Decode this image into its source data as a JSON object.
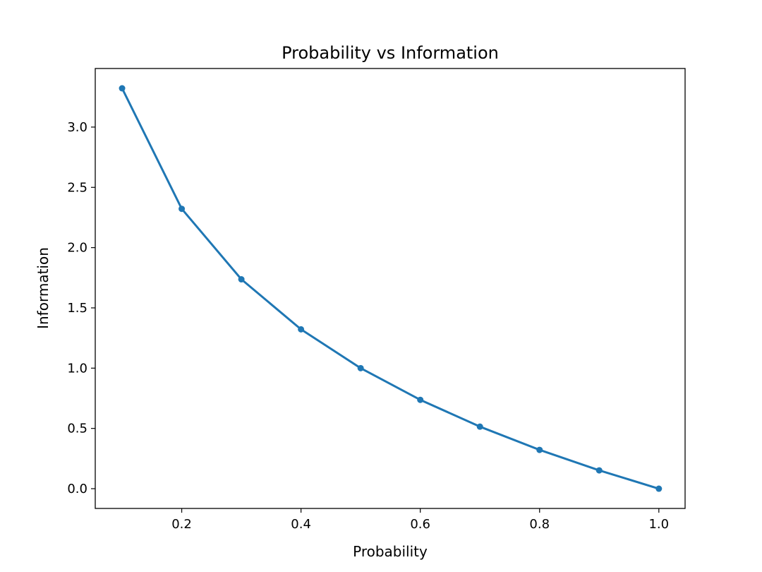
{
  "chart_data": {
    "type": "line",
    "title": "Probability vs Information",
    "xlabel": "Probability",
    "ylabel": "Information",
    "x": [
      0.1,
      0.2,
      0.3,
      0.4,
      0.5,
      0.6,
      0.7,
      0.8,
      0.9,
      1.0
    ],
    "series": [
      {
        "values": [
          3.3219,
          2.3219,
          1.737,
          1.3219,
          1.0,
          0.737,
          0.5146,
          0.3219,
          0.152,
          0.0
        ],
        "color": "#1f77b4",
        "marker": "dot"
      }
    ],
    "xlim": [
      0.055,
      1.044
    ],
    "ylim": [
      -0.164,
      3.486
    ],
    "xticks": [
      "0.2",
      "0.4",
      "0.6",
      "0.8",
      "1.0"
    ],
    "yticks": [
      "0.0",
      "0.5",
      "1.0",
      "1.5",
      "2.0",
      "2.5",
      "3.0"
    ],
    "grid": false,
    "legend": "none"
  }
}
